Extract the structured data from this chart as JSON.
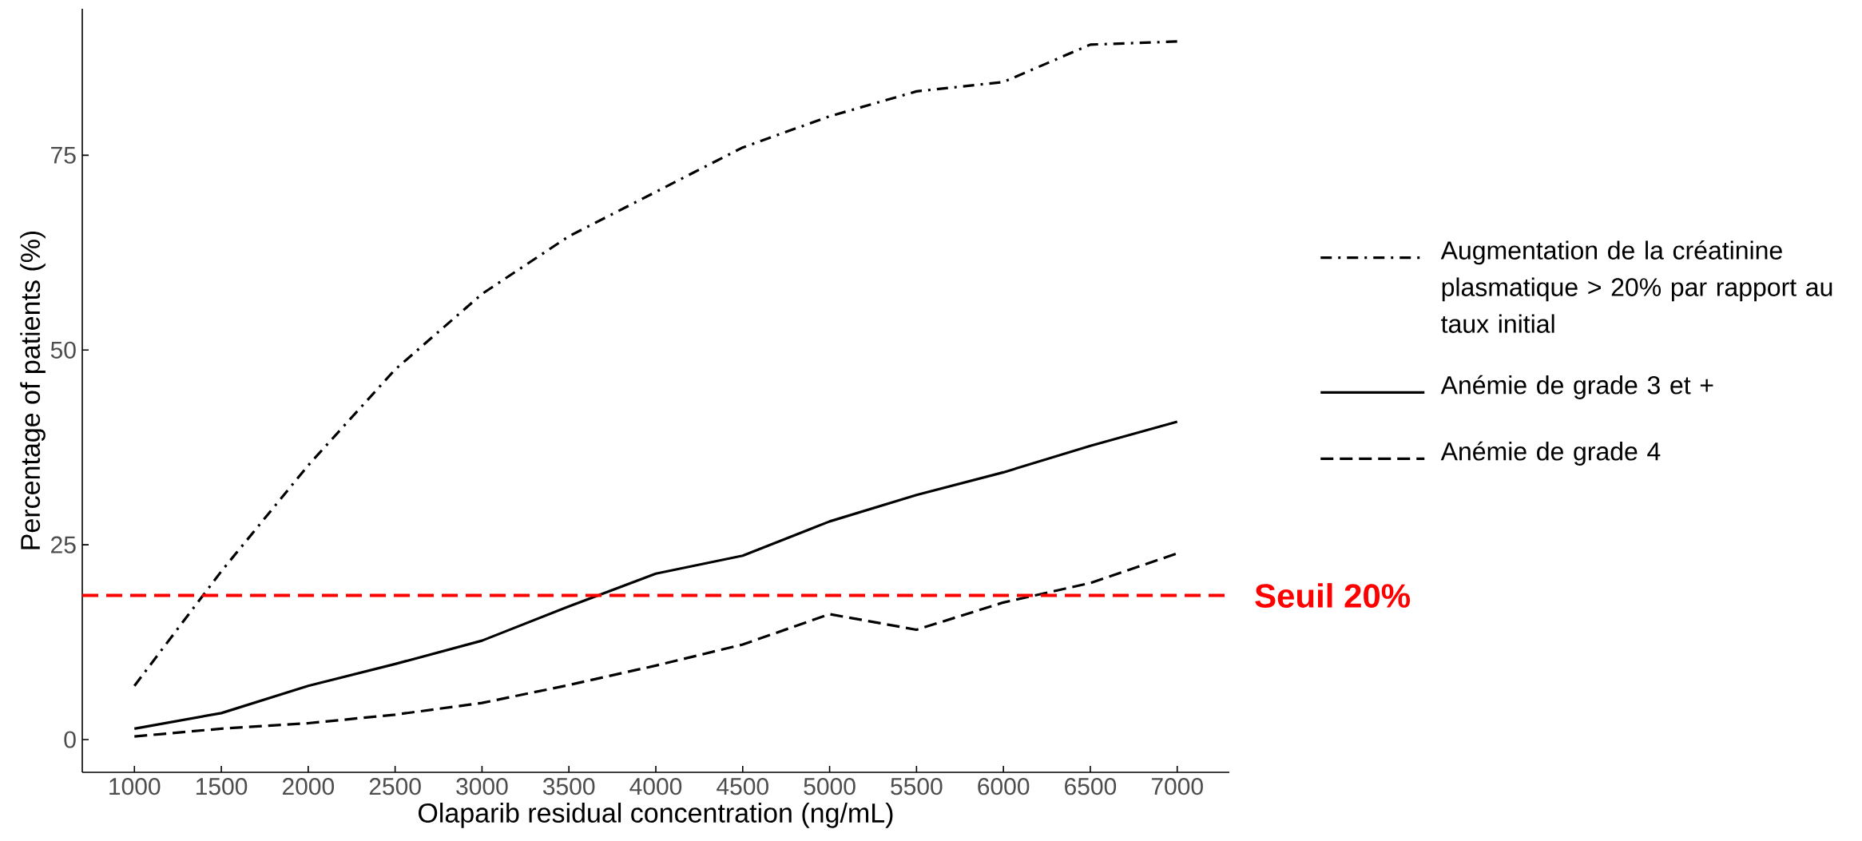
{
  "chart_data": {
    "type": "line",
    "xlabel": "Olaparib residual concentration (ng/mL)",
    "ylabel": "Percentage of patients (%)",
    "x": [
      1000,
      1500,
      2000,
      2500,
      3000,
      3500,
      4000,
      4500,
      5000,
      5500,
      6000,
      6500,
      7000
    ],
    "series": [
      {
        "name": "Augmentation de la créatinine plasmatique > 20% par rapport au taux initial",
        "color": "#000000",
        "line_style": "dashdot",
        "values": [
          6.9,
          21.6,
          35.2,
          47.5,
          57.2,
          64.6,
          70.3,
          76.0,
          80.0,
          83.2,
          84.4,
          89.2,
          89.6
        ]
      },
      {
        "name": "Anémie de grade 3 et +",
        "color": "#000000",
        "line_style": "solid",
        "values": [
          1.4,
          3.4,
          6.9,
          9.7,
          12.7,
          17.1,
          21.3,
          23.6,
          28.0,
          31.4,
          34.3,
          37.7,
          40.8
        ]
      },
      {
        "name": "Anémie de grade 4",
        "color": "#000000",
        "line_style": "dashed",
        "values": [
          0.4,
          1.4,
          2.1,
          3.2,
          4.7,
          7.0,
          9.5,
          12.2,
          16.1,
          14.1,
          17.6,
          20.1,
          23.9
        ]
      }
    ],
    "xlim": [
      700,
      7300
    ],
    "ylim": [
      -4.2,
      93.8
    ],
    "xticks": [
      1000,
      1500,
      2000,
      2500,
      3000,
      3500,
      4000,
      4500,
      5000,
      5500,
      6000,
      6500,
      7000
    ],
    "yticks": [
      0,
      25,
      50,
      75
    ],
    "ref_lines": [
      {
        "axis": "y",
        "value": 18.5,
        "label": "Seuil 20%",
        "color": "#ff0000",
        "line_style": "dashed"
      }
    ],
    "grid": false,
    "legend": "right"
  }
}
